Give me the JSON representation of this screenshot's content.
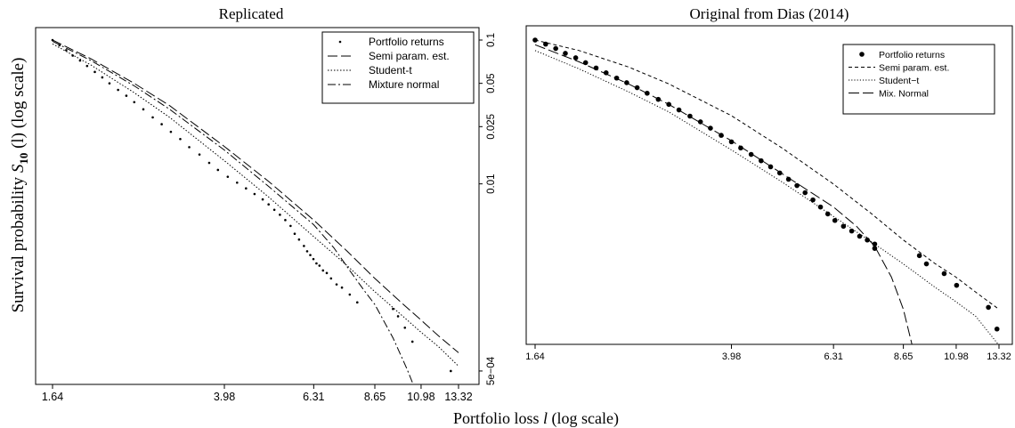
{
  "figure": {
    "ylabel_prefix": "Survival probability ",
    "ylabel_var": "S",
    "ylabel_sub": "10",
    "ylabel_suffix": " (l) (log scale)",
    "xlabel_prefix": "Portfolio loss ",
    "xlabel_var": "l",
    "xlabel_suffix": " (log scale)"
  },
  "chart_data": [
    {
      "type": "scatter",
      "title": "Replicated",
      "xlabel": "Portfolio loss l (log scale)",
      "ylabel": "Survival probability S10 (l) (log scale)",
      "x_scale": "log",
      "y_scale": "log",
      "xlim": [
        1.64,
        13.32
      ],
      "ylim": [
        0.00036,
        0.1
      ],
      "x_ticks": [
        1.64,
        3.98,
        6.31,
        8.65,
        10.98,
        13.32
      ],
      "x_tick_labels": [
        "1.64",
        "3.98",
        "6.31",
        "8.65",
        "10.98",
        "13.32"
      ],
      "y_ticks": [
        0.1,
        0.05,
        0.025,
        0.01,
        0.0005
      ],
      "y_tick_labels": [
        "0.1",
        "0.05",
        "0.025",
        "0.01",
        "5e−04"
      ],
      "y_axis_side": "right",
      "legend_position": "top-right",
      "series": [
        {
          "name": "Portfolio returns",
          "kind": "points",
          "marker_size": 1.3,
          "x": [
            1.64,
            1.7,
            1.76,
            1.82,
            1.89,
            1.96,
            2.04,
            2.12,
            2.2,
            2.3,
            2.4,
            2.5,
            2.62,
            2.75,
            2.88,
            3.02,
            3.17,
            3.32,
            3.5,
            3.68,
            3.85,
            4.05,
            4.25,
            4.45,
            4.65,
            4.85,
            5.0,
            5.15,
            5.3,
            5.45,
            5.6,
            5.72,
            5.85,
            6.0,
            6.1,
            6.2,
            6.3,
            6.4,
            6.5,
            6.62,
            6.75,
            6.9,
            7.1,
            7.3,
            7.6,
            7.9,
            9.5,
            9.75,
            10.1,
            10.5,
            12.8,
            13.32
          ],
          "y": [
            0.1,
            0.092,
            0.085,
            0.078,
            0.072,
            0.066,
            0.06,
            0.055,
            0.05,
            0.045,
            0.041,
            0.037,
            0.033,
            0.029,
            0.026,
            0.023,
            0.0205,
            0.018,
            0.016,
            0.014,
            0.0125,
            0.0112,
            0.0102,
            0.0093,
            0.0085,
            0.0078,
            0.0072,
            0.0066,
            0.0061,
            0.0056,
            0.0051,
            0.0045,
            0.0041,
            0.0037,
            0.0034,
            0.0032,
            0.003,
            0.0028,
            0.0027,
            0.0025,
            0.0024,
            0.0022,
            0.002,
            0.0019,
            0.0017,
            0.0015,
            0.00135,
            0.0012,
            0.001,
            0.0008,
            0.0005,
            0.00037
          ]
        },
        {
          "name": "Semi param. est.",
          "kind": "line",
          "dash": "11,4",
          "x": [
            1.64,
            2.0,
            2.5,
            3.0,
            3.98,
            5.0,
            6.31,
            7.5,
            8.65,
            10.0,
            10.98,
            12.0,
            13.32
          ],
          "y": [
            0.1,
            0.074,
            0.05,
            0.035,
            0.0182,
            0.0104,
            0.0056,
            0.0034,
            0.0022,
            0.00146,
            0.00113,
            0.00088,
            0.00067
          ]
        },
        {
          "name": "Student-t",
          "kind": "line",
          "dash": "1.5,2",
          "x": [
            1.64,
            2.0,
            2.5,
            3.0,
            3.98,
            5.0,
            6.31,
            7.5,
            8.65,
            10.0,
            10.98,
            12.0,
            13.32
          ],
          "y": [
            0.094,
            0.067,
            0.043,
            0.029,
            0.0145,
            0.0081,
            0.0043,
            0.0027,
            0.00178,
            0.0012,
            0.00093,
            0.00074,
            0.00054
          ]
        },
        {
          "name": "Mixture normal",
          "kind": "line",
          "dash": "9,3,2,3",
          "x": [
            1.64,
            2.0,
            2.5,
            3.0,
            3.98,
            5.0,
            6.31,
            7.0,
            7.6,
            8.2,
            8.65,
            9.5,
            10.2,
            10.7
          ],
          "y": [
            0.098,
            0.072,
            0.048,
            0.033,
            0.0172,
            0.0096,
            0.0052,
            0.0036,
            0.0025,
            0.0018,
            0.00145,
            0.00085,
            0.00052,
            0.00036
          ]
        }
      ]
    },
    {
      "type": "scatter",
      "title": "Original from Dias (2014)",
      "x_scale": "log",
      "y_scale": "log",
      "xlim": [
        1.64,
        13.32
      ],
      "ylim": [
        0.00045,
        0.1
      ],
      "x_ticks": [
        1.64,
        3.98,
        6.31,
        8.65,
        10.98,
        13.32
      ],
      "x_tick_labels": [
        "1.64",
        "3.98",
        "6.31",
        "8.65",
        "10.98",
        "13.32"
      ],
      "legend_position": "top-right",
      "series": [
        {
          "name": "Portfolio returns",
          "kind": "points",
          "marker_size": 2.8,
          "x": [
            1.64,
            1.72,
            1.8,
            1.88,
            1.97,
            2.06,
            2.16,
            2.26,
            2.37,
            2.48,
            2.6,
            2.72,
            2.86,
            3.0,
            3.14,
            3.3,
            3.46,
            3.62,
            3.8,
            3.98,
            4.15,
            4.35,
            4.55,
            4.75,
            4.95,
            5.15,
            5.35,
            5.55,
            5.75,
            5.95,
            6.15,
            6.35,
            6.6,
            6.85,
            7.1,
            7.35,
            7.6,
            7.6,
            9.3,
            9.6,
            10.4,
            11.0,
            12.7,
            13.2
          ],
          "y": [
            0.1,
            0.093,
            0.086,
            0.079,
            0.073,
            0.067,
            0.061,
            0.056,
            0.051,
            0.047,
            0.043,
            0.039,
            0.035,
            0.032,
            0.029,
            0.026,
            0.0235,
            0.021,
            0.0185,
            0.0165,
            0.0148,
            0.0132,
            0.0118,
            0.0106,
            0.0095,
            0.0085,
            0.0076,
            0.0067,
            0.0059,
            0.0052,
            0.0046,
            0.0041,
            0.0037,
            0.0034,
            0.0031,
            0.0029,
            0.0027,
            0.0025,
            0.0022,
            0.0019,
            0.0016,
            0.0013,
            0.00088,
            0.0006
          ]
        },
        {
          "name": "Semi param. est.",
          "kind": "line",
          "dash": "4,3",
          "x": [
            1.64,
            2.0,
            2.5,
            3.0,
            3.98,
            5.0,
            6.31,
            7.5,
            8.65,
            10.0,
            10.98,
            12.0,
            13.32
          ],
          "y": [
            0.1,
            0.083,
            0.062,
            0.046,
            0.0262,
            0.0148,
            0.0078,
            0.0046,
            0.0029,
            0.0019,
            0.0015,
            0.00115,
            0.00085
          ]
        },
        {
          "name": "Student−t",
          "kind": "line",
          "dash": "1.2,2",
          "x": [
            1.64,
            2.0,
            2.5,
            3.0,
            3.98,
            5.0,
            6.31,
            7.5,
            8.65,
            10.0,
            10.98,
            12.0,
            13.32
          ],
          "y": [
            0.083,
            0.06,
            0.04,
            0.028,
            0.0143,
            0.0081,
            0.0044,
            0.0028,
            0.0019,
            0.00125,
            0.00097,
            0.00075,
            0.00045
          ]
        },
        {
          "name": "Mix. Normal",
          "kind": "line",
          "dash": "12,4",
          "x": [
            1.64,
            2.0,
            2.5,
            3.0,
            3.98,
            5.0,
            6.31,
            7.0,
            7.6,
            8.2,
            8.65,
            9.0
          ],
          "y": [
            0.092,
            0.068,
            0.046,
            0.032,
            0.0168,
            0.0094,
            0.0052,
            0.0037,
            0.0026,
            0.0015,
            0.00085,
            0.00045
          ]
        }
      ]
    }
  ]
}
